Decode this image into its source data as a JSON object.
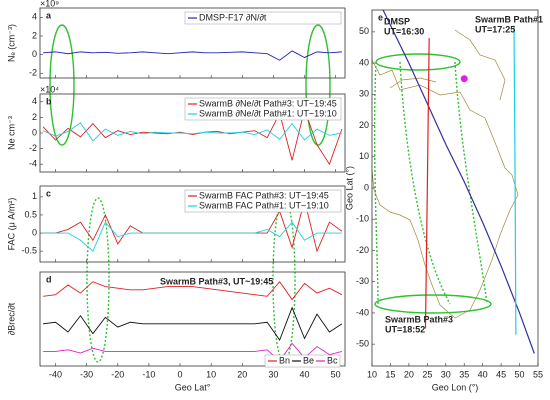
{
  "chart_data": [
    {
      "type": "line",
      "panel_label": "a",
      "ylabel": "Nₑ (cm⁻³)",
      "y_multiplier": "×10⁹",
      "xlim": [
        -45,
        53
      ],
      "xticks": [
        -40,
        -30,
        -20,
        -10,
        0,
        10,
        20,
        30,
        40,
        50
      ],
      "ylim": [
        -2.5,
        5
      ],
      "yticks": [
        -2,
        0,
        2,
        4
      ],
      "x": [
        -44,
        -40,
        -36,
        -32,
        -28,
        -24,
        -20,
        -16,
        -12,
        -8,
        -4,
        0,
        4,
        8,
        12,
        16,
        20,
        24,
        28,
        32,
        36,
        40,
        44,
        48,
        52
      ],
      "series": [
        {
          "name": "DMSP-F17 ∂N/∂t",
          "color": "#2323b8",
          "values": [
            0.2,
            0.3,
            0.1,
            0.3,
            0.2,
            0.25,
            0.15,
            0.2,
            0.3,
            0.2,
            0.1,
            0.2,
            0.3,
            0.2,
            0.2,
            0.25,
            0.3,
            0.2,
            0.1,
            -0.6,
            0.4,
            -0.3,
            0.3,
            0.2,
            0.3
          ]
        }
      ]
    },
    {
      "type": "line",
      "panel_label": "b",
      "ylabel": "Ne cm⁻³",
      "y_multiplier": "×10⁴",
      "xlim": [
        -45,
        53
      ],
      "xticks": [
        -40,
        -30,
        -20,
        -10,
        0,
        10,
        20,
        30,
        40,
        50
      ],
      "ylim": [
        -5,
        5
      ],
      "yticks": [
        -4,
        -2,
        0,
        2,
        4
      ],
      "x": [
        -44,
        -40,
        -36,
        -32,
        -28,
        -24,
        -20,
        -16,
        -12,
        -8,
        -4,
        0,
        4,
        8,
        12,
        16,
        20,
        24,
        28,
        32,
        36,
        40,
        44,
        48,
        52
      ],
      "series": [
        {
          "name": "SwarmB ∂Ne/∂t Path#3: UT~19:45",
          "color": "#e02020",
          "values": [
            0.8,
            -0.9,
            0.6,
            -0.5,
            1.2,
            -0.6,
            0.3,
            -0.2,
            0.1,
            0,
            -0.1,
            0.1,
            -0.2,
            0.1,
            0.2,
            -0.1,
            0.1,
            0.3,
            -0.6,
            2.5,
            -3.5,
            3,
            -1.5,
            -4,
            0.5
          ]
        },
        {
          "name": "SwarmB ∂Ne/∂t Path#1: UT~19:10",
          "color": "#1ecfe0",
          "values": [
            0.3,
            -0.4,
            0.2,
            1.3,
            -1,
            0.5,
            -0.3,
            0.2,
            -0.1,
            0.1,
            0,
            0,
            -0.1,
            0.1,
            0,
            0,
            0.1,
            -0.2,
            0.4,
            -0.8,
            1.2,
            -0.9,
            0.5,
            -0.3,
            0
          ]
        }
      ]
    },
    {
      "type": "line",
      "panel_label": "c",
      "ylabel": "FAC (μ A/m²)",
      "xlim": [
        -45,
        53
      ],
      "xticks": [
        -40,
        -30,
        -20,
        -10,
        0,
        10,
        20,
        30,
        40,
        50
      ],
      "ylim": [
        -0.8,
        1.3
      ],
      "yticks": [
        -0.5,
        0,
        0.5,
        1
      ],
      "x": [
        -44,
        -40,
        -36,
        -32,
        -28,
        -24,
        -20,
        -16,
        -12,
        -8,
        -4,
        0,
        4,
        8,
        12,
        16,
        20,
        24,
        28,
        32,
        36,
        40,
        44,
        48,
        52
      ],
      "series": [
        {
          "name": "SwarmB FAC Path#3: UT~19:45",
          "color": "#e02020",
          "values": [
            0,
            0,
            0.1,
            0.3,
            -0.2,
            0.5,
            -0.3,
            0.2,
            0,
            0,
            0,
            0,
            0,
            0,
            0,
            0,
            0,
            0,
            0,
            0.6,
            -0.4,
            0.9,
            -0.5,
            0.3,
            0.05
          ]
        },
        {
          "name": "SwarmB FAC Path#1: UT~19:10",
          "color": "#1ecfe0",
          "values": [
            0,
            0,
            0,
            -0.2,
            -0.5,
            0.3,
            -0.1,
            0,
            0,
            0,
            0,
            0,
            0,
            0,
            0,
            0,
            0,
            0,
            0.1,
            -0.1,
            0.3,
            -0.2,
            0,
            0,
            0
          ]
        }
      ]
    },
    {
      "type": "line",
      "panel_label": "d",
      "title": "SwarmB Path#3, UT~19:45",
      "ylabel": "∂Brec/∂t",
      "xlabel": "Geo Lat°",
      "xlim": [
        -45,
        53
      ],
      "xticks": [
        -40,
        -30,
        -20,
        -10,
        0,
        10,
        20,
        30,
        40,
        50
      ],
      "ylim": [
        -2.6,
        3.2
      ],
      "x": [
        -44,
        -40,
        -36,
        -32,
        -28,
        -24,
        -20,
        -16,
        -12,
        -8,
        -4,
        0,
        4,
        8,
        12,
        16,
        20,
        24,
        28,
        32,
        36,
        40,
        44,
        48,
        52
      ],
      "series": [
        {
          "name": "Bn",
          "color": "#e02020",
          "values": [
            1.7,
            1.8,
            2.4,
            1.9,
            2.6,
            2.3,
            2.2,
            2.1,
            2.1,
            2.2,
            2.3,
            2.3,
            2.3,
            2.2,
            2.1,
            2.0,
            1.9,
            1.8,
            1.7,
            2.6,
            1.5,
            2.5,
            1.9,
            2.2,
            1.8
          ]
        },
        {
          "name": "Be",
          "color": "#111111",
          "values": [
            0,
            0.1,
            -0.5,
            0.5,
            -0.6,
            0.4,
            -0.2,
            0.1,
            0,
            0,
            0,
            0,
            0,
            0,
            0,
            0,
            0,
            0,
            0.1,
            -1,
            1,
            -0.9,
            0.6,
            -0.5,
            0
          ]
        },
        {
          "name": "Bc",
          "color": "#e020c0",
          "values": [
            -1.7,
            -1.7,
            -1.6,
            -1.8,
            -1.5,
            -1.7,
            -1.7,
            -1.7,
            -1.7,
            -1.7,
            -1.7,
            -1.7,
            -1.7,
            -1.7,
            -1.7,
            -1.7,
            -1.7,
            -1.7,
            -1.6,
            -2.3,
            -1.2,
            -2.1,
            -1.4,
            -1.9,
            -1.7
          ]
        }
      ]
    },
    {
      "type": "map",
      "panel_label": "e",
      "xlabel": "Geo Lon (°)",
      "ylabel": "Geo Lat (°)",
      "xlim": [
        10,
        55
      ],
      "xticks": [
        10,
        15,
        20,
        25,
        30,
        35,
        40,
        45,
        50,
        55
      ],
      "ylim": [
        -57,
        57
      ],
      "yticks": [
        -50,
        -40,
        -30,
        -20,
        -10,
        0,
        10,
        20,
        30,
        40,
        50
      ],
      "series": [
        {
          "color": "#3030a0",
          "x": [
            13,
            20,
            25,
            30,
            35,
            40,
            45,
            50,
            54
          ],
          "values": [
            57,
            40,
            27,
            14,
            2,
            -11,
            -25,
            -40,
            -53
          ]
        },
        {
          "color": "#e02020",
          "x": [
            25.5,
            25,
            24.5
          ],
          "values": [
            48,
            0,
            -45
          ]
        },
        {
          "color": "#1ecfe0",
          "x": [
            48.5,
            48.8,
            49
          ],
          "values": [
            52,
            0,
            -47
          ]
        }
      ],
      "point": {
        "color": "#e020e0",
        "x": 35,
        "y": 35
      },
      "annotations": [
        {
          "lines": [
            "DMSP",
            "UT=16:30"
          ],
          "color": "#2323b8"
        },
        {
          "lines": [
            "SwarmB Path#1",
            "UT=17:25"
          ],
          "color": "#1ecfe0"
        },
        {
          "lines": [
            "SwarmB Path#3",
            "UT=18:52"
          ],
          "color": "#e02020"
        }
      ]
    }
  ]
}
